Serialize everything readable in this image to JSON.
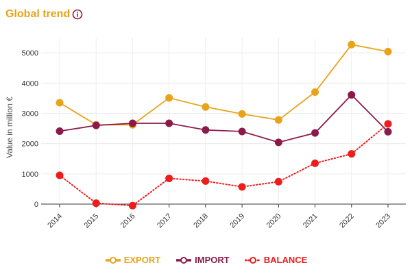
{
  "header": {
    "title": "Global trend",
    "info_icon": "info-circle-icon"
  },
  "chart_data": {
    "type": "line",
    "title": "Global trend",
    "xlabel": "",
    "ylabel": "Value in million €",
    "ylim": [
      0,
      5500
    ],
    "yticks": [
      0,
      1000,
      2000,
      3000,
      4000,
      5000
    ],
    "categories": [
      "2014",
      "2015",
      "2016",
      "2017",
      "2018",
      "2019",
      "2020",
      "2021",
      "2022",
      "2023"
    ],
    "grid": true,
    "legend_position": "bottom",
    "series": [
      {
        "name": "EXPORT",
        "color": "#e8a317",
        "style": "solid",
        "values": [
          3350,
          2620,
          2620,
          3510,
          3210,
          2980,
          2780,
          3700,
          5270,
          5040
        ]
      },
      {
        "name": "IMPORT",
        "color": "#8b1a4a",
        "style": "solid",
        "values": [
          2410,
          2600,
          2670,
          2670,
          2450,
          2400,
          2040,
          2350,
          3610,
          2390
        ]
      },
      {
        "name": "BALANCE",
        "color": "#ee1c1c",
        "style": "dotted",
        "values": [
          950,
          30,
          -50,
          850,
          760,
          570,
          740,
          1350,
          1660,
          2650
        ]
      }
    ]
  }
}
